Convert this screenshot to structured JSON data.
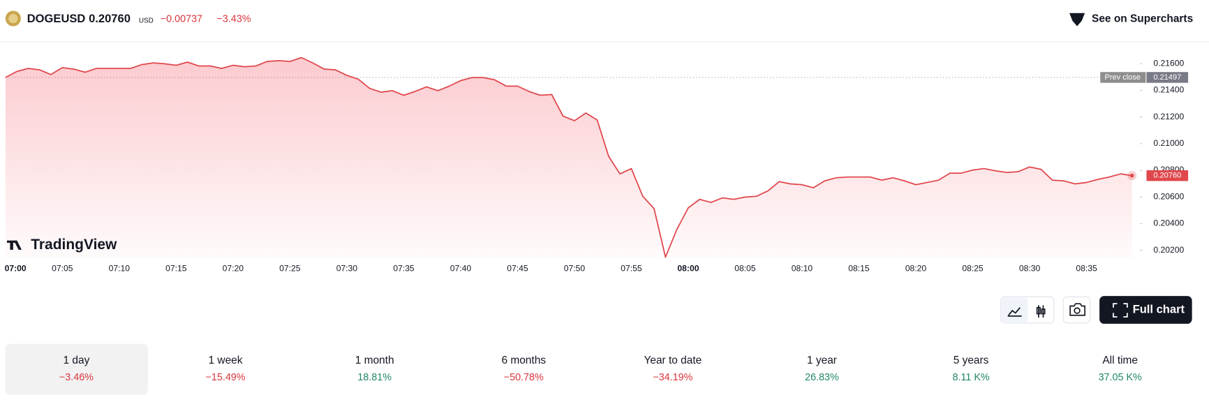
{
  "header": {
    "symbol": "DOGEUSD",
    "price": "0.20760",
    "currency": "USD",
    "change": "−0.00737",
    "change_percent": "−3.43%",
    "supercharts": "See on Supercharts"
  },
  "logo": "TradingView",
  "full_chart": "Full chart",
  "chart_data": {
    "type": "line",
    "color": "#e0474c",
    "x": [
      "07:00",
      "07:01",
      "07:02",
      "07:03",
      "07:04",
      "07:05",
      "07:06",
      "07:07",
      "07:08",
      "07:09",
      "07:10",
      "07:11",
      "07:12",
      "07:13",
      "07:14",
      "07:15",
      "07:16",
      "07:17",
      "07:18",
      "07:19",
      "07:20",
      "07:21",
      "07:22",
      "07:23",
      "07:24",
      "07:25",
      "07:26",
      "07:27",
      "07:28",
      "07:29",
      "07:30",
      "07:31",
      "07:32",
      "07:33",
      "07:34",
      "07:35",
      "07:36",
      "07:37",
      "07:38",
      "07:39",
      "07:40",
      "07:41",
      "07:42",
      "07:43",
      "07:44",
      "07:45",
      "07:46",
      "07:47",
      "07:48",
      "07:49",
      "07:50",
      "07:51",
      "07:52",
      "07:53",
      "07:54",
      "07:55",
      "07:56",
      "07:57",
      "07:58",
      "07:59",
      "08:00",
      "08:01",
      "08:02",
      "08:03",
      "08:04",
      "08:05",
      "08:06",
      "08:07",
      "08:08",
      "08:09",
      "08:10",
      "08:11",
      "08:12",
      "08:13",
      "08:14",
      "08:15",
      "08:16",
      "08:17",
      "08:18",
      "08:19",
      "08:20",
      "08:21",
      "08:22",
      "08:23",
      "08:24",
      "08:25",
      "08:26",
      "08:27",
      "08:28",
      "08:29",
      "08:30",
      "08:31",
      "08:32",
      "08:33",
      "08:34",
      "08:35",
      "08:36",
      "08:37",
      "08:38",
      "08:39"
    ],
    "values": [
      0.21497,
      0.21542,
      0.21565,
      0.21554,
      0.21519,
      0.21571,
      0.2156,
      0.21536,
      0.21565,
      0.21565,
      0.21565,
      0.21565,
      0.21594,
      0.21606,
      0.216,
      0.21588,
      0.21612,
      0.21583,
      0.21583,
      0.21565,
      0.21588,
      0.21577,
      0.21583,
      0.21617,
      0.21623,
      0.21617,
      0.21646,
      0.21606,
      0.2156,
      0.21554,
      0.21513,
      0.21484,
      0.21415,
      0.21386,
      0.21398,
      0.21363,
      0.21392,
      0.21426,
      0.21398,
      0.21432,
      0.21473,
      0.21496,
      0.21496,
      0.21479,
      0.21432,
      0.21432,
      0.21392,
      0.21363,
      0.21369,
      0.21207,
      0.21172,
      0.2123,
      0.21178,
      0.20906,
      0.20773,
      0.20813,
      0.20605,
      0.20512,
      0.20148,
      0.20356,
      0.20518,
      0.20582,
      0.20559,
      0.20593,
      0.20582,
      0.20599,
      0.20605,
      0.20645,
      0.20715,
      0.20698,
      0.20692,
      0.20669,
      0.20721,
      0.20744,
      0.2075,
      0.2075,
      0.2075,
      0.20726,
      0.20744,
      0.20721,
      0.20692,
      0.20709,
      0.20726,
      0.20779,
      0.20779,
      0.20802,
      0.20813,
      0.20796,
      0.20784,
      0.2079,
      0.20825,
      0.20807,
      0.20726,
      0.20721,
      0.20698,
      0.20709,
      0.20732,
      0.2075,
      0.20773,
      0.2076
    ],
    "last_label": "0.20760",
    "prev_close": {
      "name": "Prev close",
      "value": 0.21497,
      "label": "0.21497"
    },
    "ylim": [
      0.2014,
      0.2176
    ],
    "yticks": [
      {
        "value": 0.202,
        "label": "0.20200"
      },
      {
        "value": 0.204,
        "label": "0.20400"
      },
      {
        "value": 0.206,
        "label": "0.20600"
      },
      {
        "value": 0.208,
        "label": "0.20800"
      },
      {
        "value": 0.21,
        "label": "0.21000"
      },
      {
        "value": 0.212,
        "label": "0.21200"
      },
      {
        "value": 0.214,
        "label": "0.21400"
      },
      {
        "value": 0.216,
        "label": "0.21600"
      }
    ],
    "xticks": [
      "07:00",
      "07:05",
      "07:10",
      "07:15",
      "07:20",
      "07:25",
      "07:30",
      "07:35",
      "07:40",
      "07:45",
      "07:50",
      "07:55",
      "08:00",
      "08:05",
      "08:10",
      "08:15",
      "08:20",
      "08:25",
      "08:30",
      "08:35"
    ]
  },
  "periods": [
    {
      "label": "1 day",
      "change": "−3.46%"
    },
    {
      "label": "1 week",
      "change": "−15.49%"
    },
    {
      "label": "1 month",
      "change": "18.81%"
    },
    {
      "label": "6 months",
      "change": "−50.78%"
    },
    {
      "label": "Year to date",
      "change": "−34.19%"
    },
    {
      "label": "1 year",
      "change": "26.83%"
    },
    {
      "label": "5 years",
      "change": "8.11 K%"
    },
    {
      "label": "All time",
      "change": "37.05 K%"
    }
  ]
}
